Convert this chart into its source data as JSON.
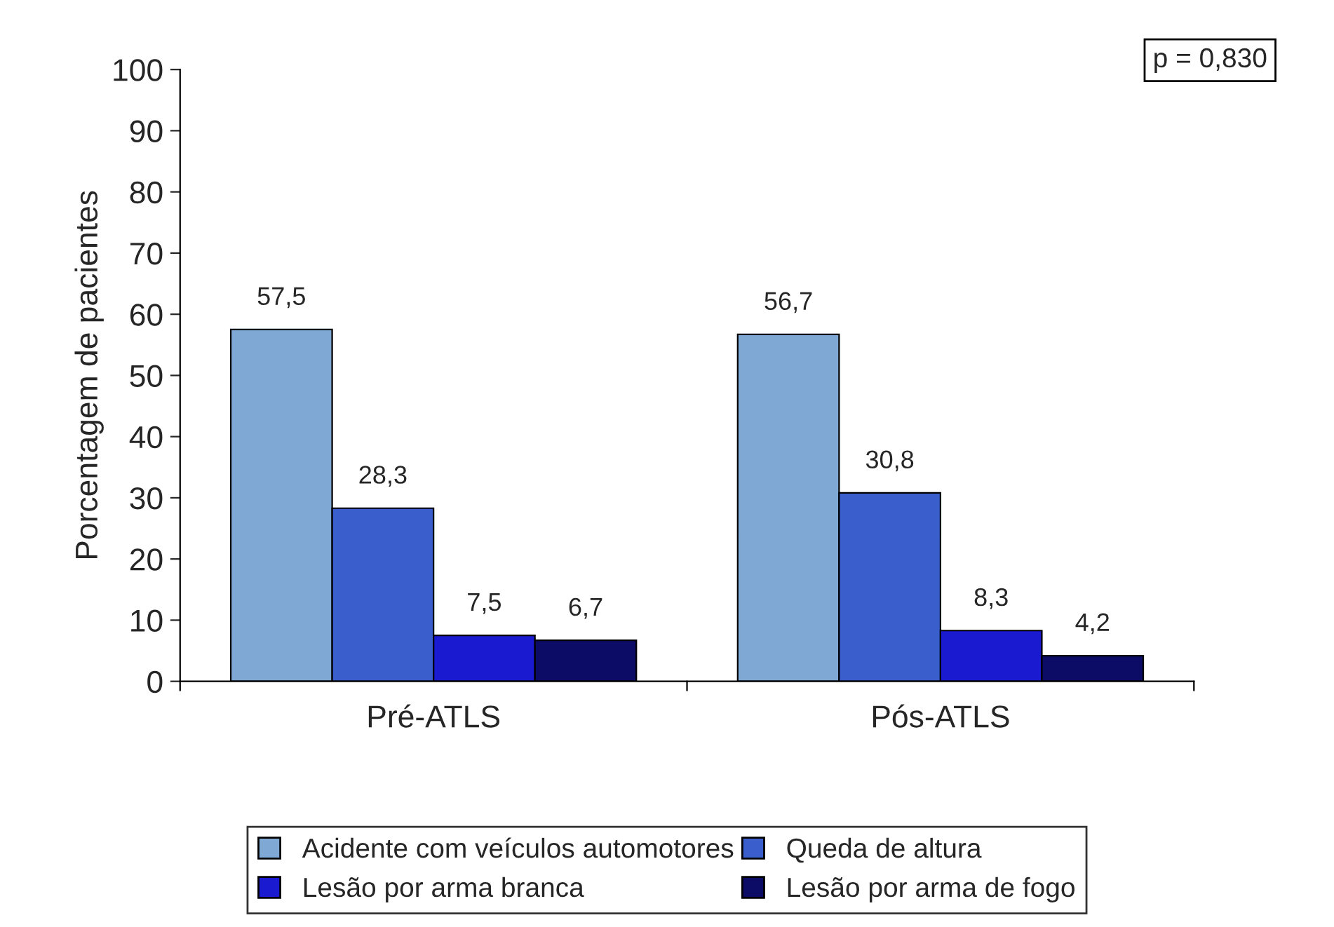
{
  "chart_data": {
    "type": "bar",
    "ylabel": "Porcentagem de pacientes",
    "categories": [
      "Pré-ATLS",
      "Pós-ATLS"
    ],
    "series": [
      {
        "name": "Acidente com veículos automotores",
        "color": "#7fa8d4",
        "values": [
          57.5,
          56.7
        ],
        "value_labels": [
          "57,5",
          "56,7"
        ]
      },
      {
        "name": "Queda de altura",
        "color": "#3a5fcd",
        "values": [
          28.3,
          30.8
        ],
        "value_labels": [
          "28,3",
          "30,8"
        ]
      },
      {
        "name": "Lesão por arma branca",
        "color": "#1a1ad0",
        "values": [
          7.5,
          8.3
        ],
        "value_labels": [
          "7,5",
          "8,3"
        ]
      },
      {
        "name": "Lesão por arma de fogo",
        "color": "#0c0c66",
        "values": [
          6.7,
          4.2
        ],
        "value_labels": [
          "6,7",
          "4,2"
        ]
      }
    ],
    "ylim": [
      0,
      100
    ],
    "yticks": [
      0,
      10,
      20,
      30,
      40,
      50,
      60,
      70,
      80,
      90,
      100
    ],
    "annotations": [
      "p = 0,830"
    ],
    "legend": "bottom",
    "grid": false
  }
}
